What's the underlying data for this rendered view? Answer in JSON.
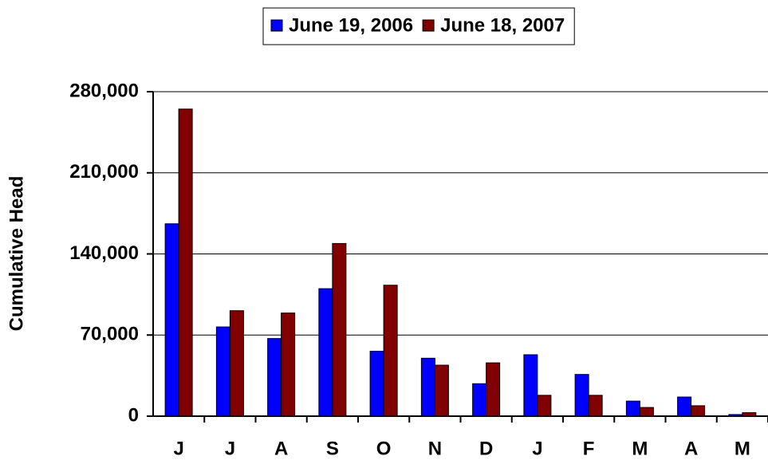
{
  "chart_data": {
    "type": "bar",
    "y_label": "Cumulative Head",
    "categories": [
      "J",
      "J",
      "A",
      "S",
      "O",
      "N",
      "D",
      "J",
      "F",
      "M",
      "A",
      "M"
    ],
    "series": [
      {
        "name": "June 19, 2006",
        "color": "#0000ff",
        "values": [
          166000,
          77000,
          67000,
          110000,
          56000,
          50000,
          28000,
          53000,
          36000,
          13000,
          16500,
          1400
        ]
      },
      {
        "name": "June 18, 2007",
        "color": "#800000",
        "values": [
          265000,
          91000,
          89000,
          149000,
          113000,
          44000,
          46000,
          18000,
          18000,
          7500,
          9000,
          3000
        ]
      }
    ],
    "ylim": [
      0,
      280000
    ],
    "yticks": [
      0,
      {
        "value": 70000,
        "label": "70,000"
      },
      {
        "value": 140000,
        "label": "140,000"
      },
      {
        "value": 210000,
        "label": "210,000"
      },
      {
        "value": 280000,
        "label": "280,000"
      }
    ],
    "grid": true,
    "legend": "top"
  }
}
